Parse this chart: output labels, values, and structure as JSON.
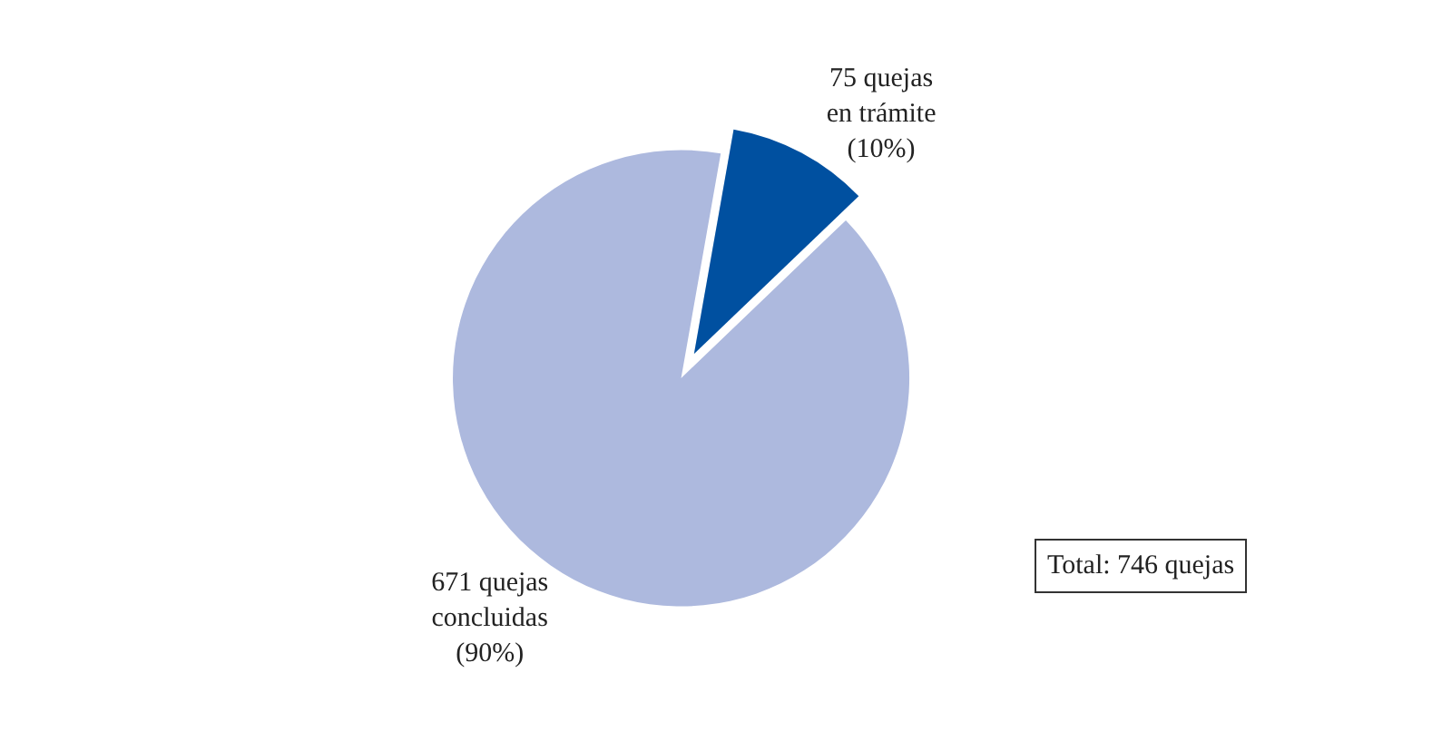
{
  "chart_data": {
    "type": "pie",
    "categories": [
      "75 quejas\nen trámite\n(10%)",
      "671 quejas\nconcluidas\n(90%)"
    ],
    "values": [
      75,
      671
    ],
    "colors": [
      "#0050a0",
      "#adb9de"
    ],
    "legend": false,
    "annotations": [
      "Total: 746 quejas"
    ]
  }
}
